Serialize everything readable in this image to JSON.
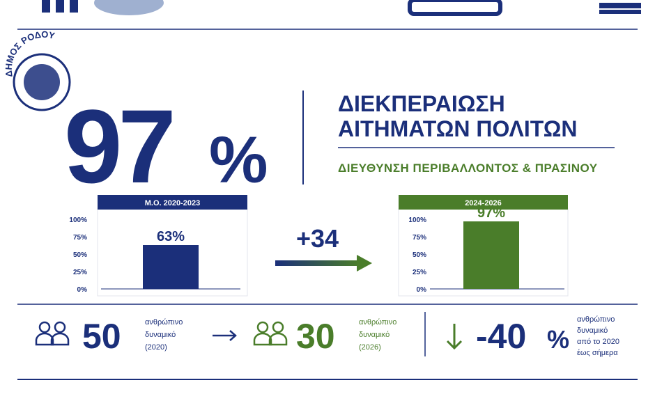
{
  "logo_text": "ΔΗΜΟΣ ΡΟΔΟΥ",
  "headline": {
    "number": "97",
    "unit": "%"
  },
  "title_lines": [
    "ΔΙΕΚΠΕΡΑΙΩΣΗ",
    "ΑΙΤΗΜΑΤΩΝ ΠΟΛΙΤΩΝ"
  ],
  "subtitle": "ΔΙΕΥΘΥΝΣΗ ΠΕΡΙΒΑΛΛΟΝΤΟΣ & ΠΡΑΣΙΝΟΥ",
  "change": "+34",
  "chart_data": [
    {
      "type": "bar",
      "title": "Μ.Ο. 2020-2023",
      "categories": [
        null
      ],
      "values": [
        63
      ],
      "value_labels": [
        "63%"
      ],
      "color": "#1b2f7a",
      "ylim": [
        0,
        100
      ],
      "yticks": [
        {
          "value": 0,
          "label": "0%"
        },
        {
          "value": 25,
          "label": "25%"
        },
        {
          "value": 50,
          "label": "50%"
        },
        {
          "value": 75,
          "label": "75%"
        },
        {
          "value": 100,
          "label": "100%"
        }
      ]
    },
    {
      "type": "bar",
      "title": "2024-2026",
      "categories": [
        null
      ],
      "values": [
        97
      ],
      "value_labels": [
        "97%"
      ],
      "color": "#4a7d2a",
      "ylim": [
        0,
        100
      ],
      "yticks": [
        {
          "value": 0,
          "label": "0%"
        },
        {
          "value": 25,
          "label": "25%"
        },
        {
          "value": 50,
          "label": "50%"
        },
        {
          "value": 75,
          "label": "75%"
        },
        {
          "value": 100,
          "label": "100%"
        }
      ]
    }
  ],
  "stats": [
    {
      "number": "50",
      "lines": [
        "ανθρώπινο",
        "δυναμικό",
        "(2020)"
      ]
    },
    {
      "number": "30",
      "lines": [
        "ανθρώπινο",
        "δυναμικό",
        "(2026)"
      ]
    },
    {
      "number": "-40",
      "unit": "%",
      "lines": [
        "ανθρώπινο",
        "δυναμικό",
        "από το 2020",
        "έως σήμερα"
      ]
    }
  ]
}
